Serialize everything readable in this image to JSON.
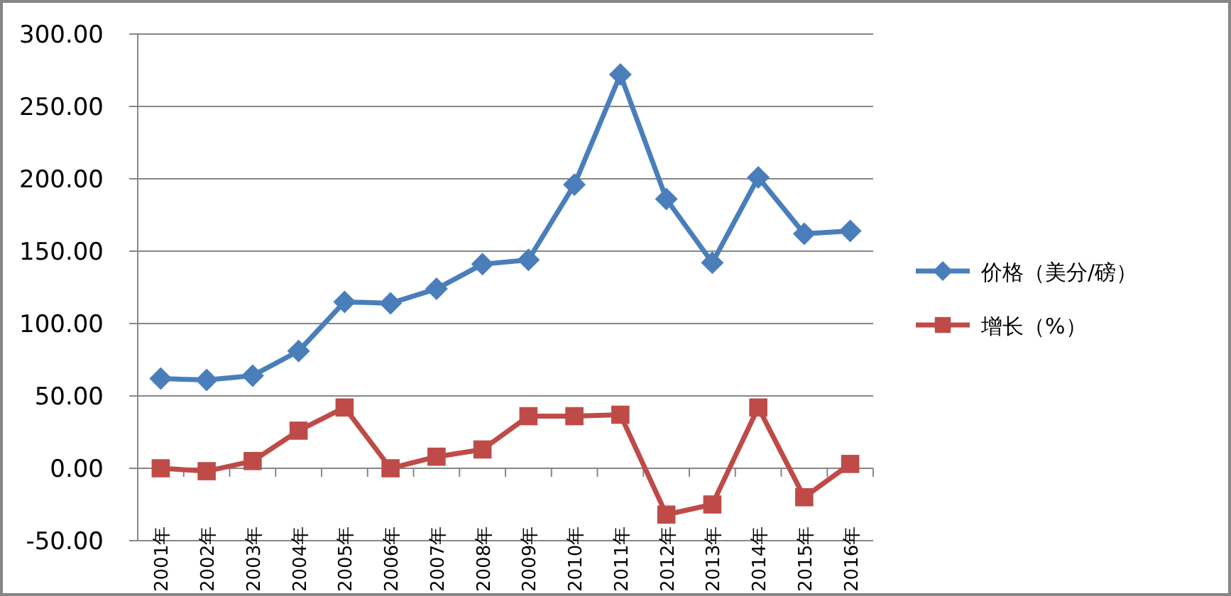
{
  "chart_data": {
    "type": "line",
    "categories": [
      "2001年",
      "2002年",
      "2003年",
      "2004年",
      "2005年",
      "2006年",
      "2007年",
      "2008年",
      "2009年",
      "2010年",
      "2011年",
      "2012年",
      "2013年",
      "2014年",
      "2015年",
      "2016年"
    ],
    "series": [
      {
        "name": "价格（美分/磅）",
        "color": "#4a7ebb",
        "marker": "diamond",
        "values": [
          62,
          61,
          64,
          81,
          115,
          114,
          124,
          141,
          144,
          196,
          272,
          186,
          142,
          201,
          162,
          164
        ]
      },
      {
        "name": "增长（%）",
        "color": "#be4b48",
        "marker": "square",
        "values": [
          0,
          -2,
          5,
          26,
          42,
          0,
          8,
          13,
          36,
          36,
          37,
          -32,
          -25,
          42,
          -20,
          3
        ]
      }
    ],
    "ylim": [
      -50,
      300
    ],
    "yticks": [
      {
        "value": -50,
        "label": "-50.00"
      },
      {
        "value": 0,
        "label": "0.00"
      },
      {
        "value": 50,
        "label": "50.00"
      },
      {
        "value": 100,
        "label": "100.00"
      },
      {
        "value": 150,
        "label": "150.00"
      },
      {
        "value": 200,
        "label": "200.00"
      },
      {
        "value": 250,
        "label": "250.00"
      },
      {
        "value": 300,
        "label": "300.00"
      }
    ],
    "grid": "y",
    "legend": "right"
  }
}
